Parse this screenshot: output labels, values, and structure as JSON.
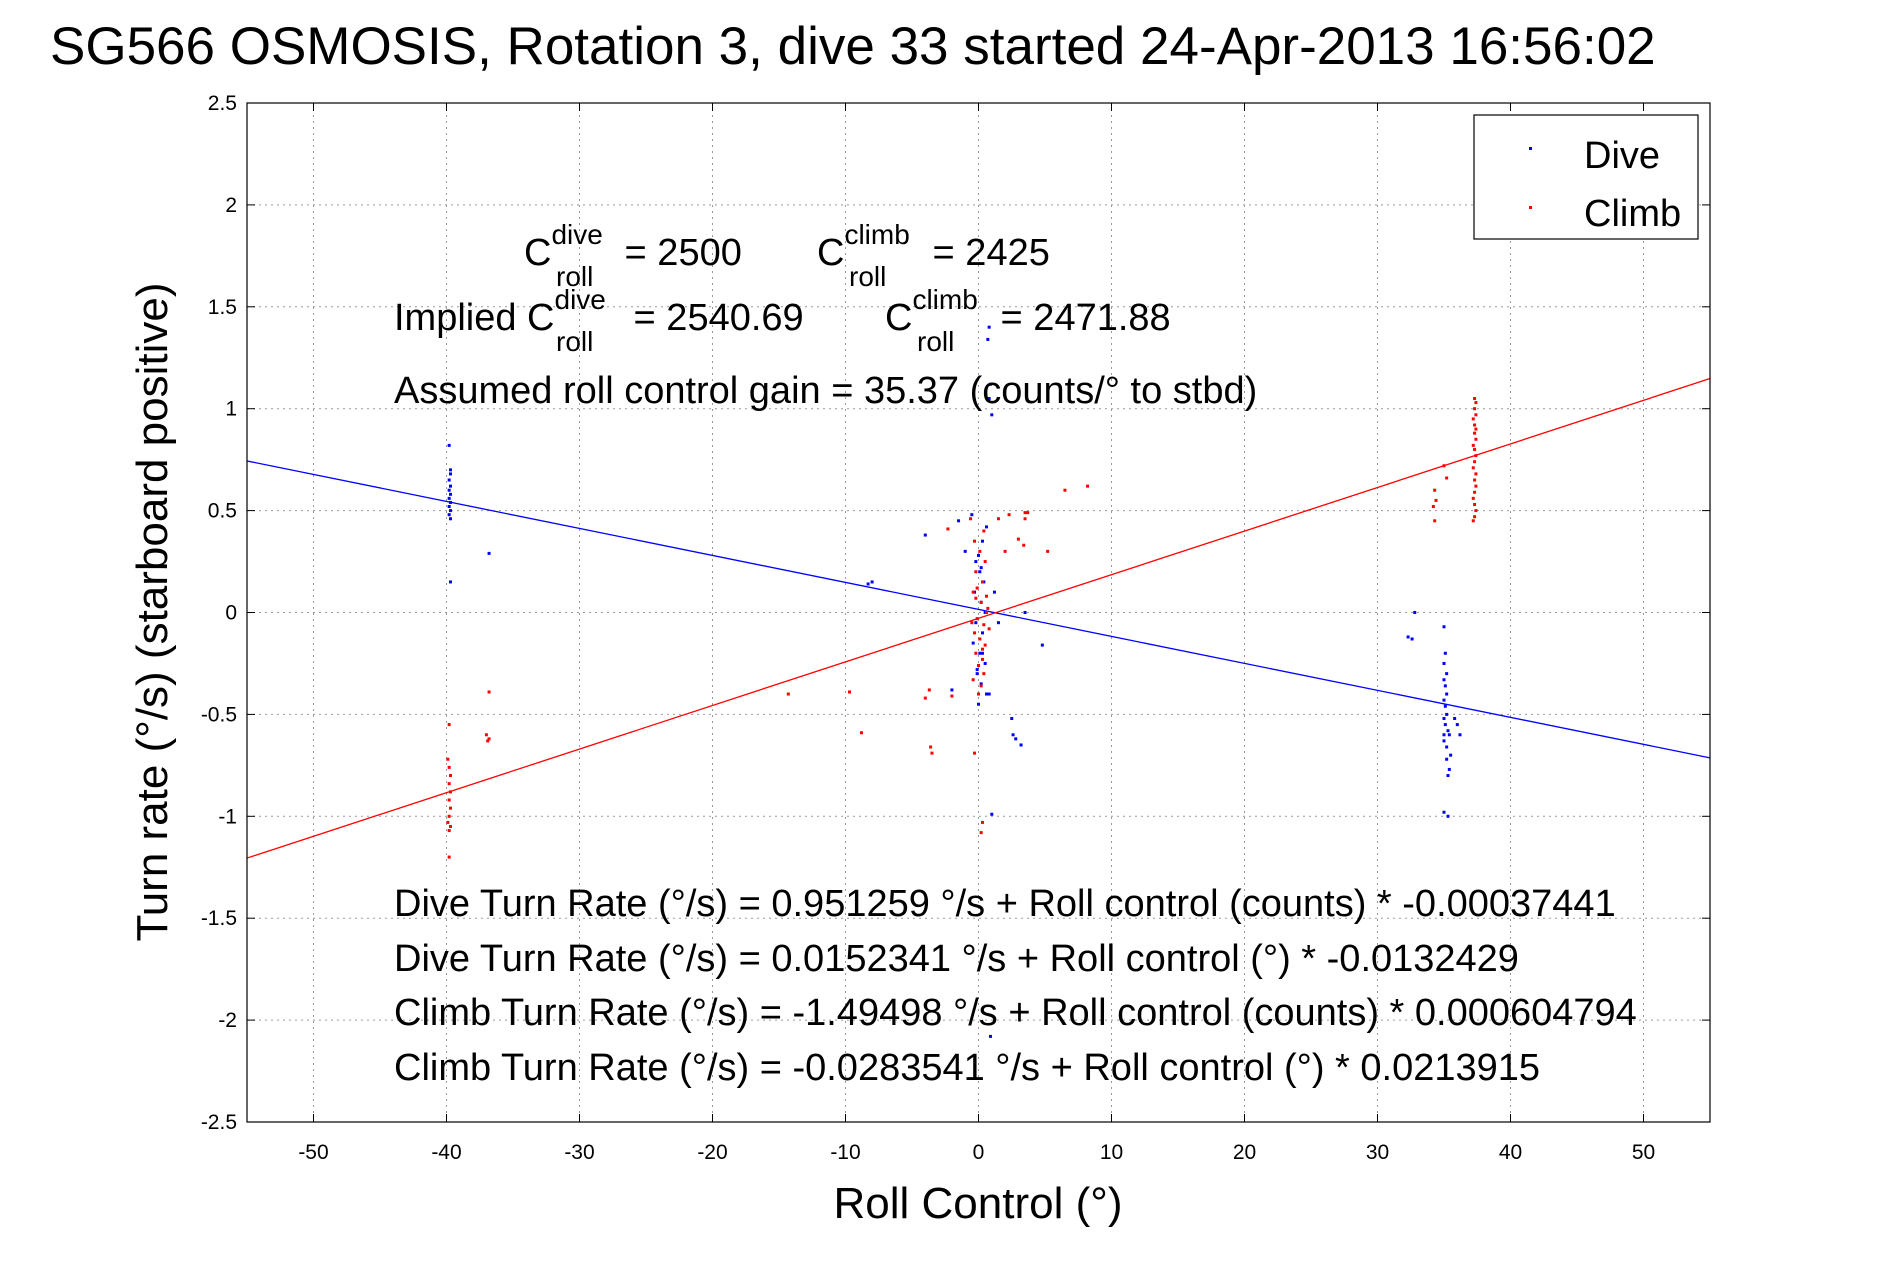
{
  "chart_data": {
    "type": "scatter",
    "title": "SG566 OSMOSIS, Rotation 3, dive 33 started 24-Apr-2013 16:56:02",
    "xlabel": "Roll Control (°)",
    "ylabel": "Turn rate (°/s)  (starboard positive)",
    "xlim": [
      -55,
      55
    ],
    "ylim": [
      -2.5,
      2.5
    ],
    "xticks": [
      -50,
      -40,
      -30,
      -20,
      -10,
      0,
      10,
      20,
      30,
      40,
      50
    ],
    "yticks": [
      -2.5,
      -2,
      -1.5,
      -1,
      -0.5,
      0,
      0.5,
      1,
      1.5,
      2,
      2.5
    ],
    "grid": true,
    "legend_position": "top-right",
    "legend": [
      "Dive",
      "Climb"
    ],
    "colors": {
      "dive": "#0000ff",
      "climb": "#ff0000"
    },
    "fit_lines": [
      {
        "series": "Dive",
        "intercept": 0.0152341,
        "slope": -0.0132429
      },
      {
        "series": "Climb",
        "intercept": -0.0283541,
        "slope": 0.0213915
      }
    ],
    "series": [
      {
        "name": "Dive",
        "points": [
          [
            -39.8,
            0.82
          ],
          [
            -39.7,
            0.7
          ],
          [
            -39.7,
            0.68
          ],
          [
            -39.8,
            0.65
          ],
          [
            -39.7,
            0.62
          ],
          [
            -39.8,
            0.6
          ],
          [
            -39.7,
            0.58
          ],
          [
            -39.8,
            0.56
          ],
          [
            -39.7,
            0.54
          ],
          [
            -39.8,
            0.52
          ],
          [
            -39.7,
            0.5
          ],
          [
            -39.8,
            0.48
          ],
          [
            -39.7,
            0.46
          ],
          [
            -39.7,
            0.15
          ],
          [
            -36.8,
            0.29
          ],
          [
            -8.3,
            0.14
          ],
          [
            -8.0,
            0.15
          ],
          [
            -4.0,
            0.38
          ],
          [
            -1.5,
            0.45
          ],
          [
            -1.0,
            0.3
          ],
          [
            -2.0,
            -0.38
          ],
          [
            -0.5,
            0.48
          ],
          [
            0.6,
            0.42
          ],
          [
            0.3,
            0.35
          ],
          [
            -0.2,
            0.25
          ],
          [
            0.1,
            0.2
          ],
          [
            0.4,
            0.15
          ],
          [
            -0.3,
            0.1
          ],
          [
            0.2,
            0.05
          ],
          [
            0.5,
            0.0
          ],
          [
            -0.2,
            -0.05
          ],
          [
            0.3,
            -0.1
          ],
          [
            -0.4,
            -0.15
          ],
          [
            0.1,
            -0.2
          ],
          [
            0.5,
            -0.25
          ],
          [
            -0.1,
            -0.3
          ],
          [
            0.2,
            -0.35
          ],
          [
            0.6,
            -0.4
          ],
          [
            0.0,
            -0.45
          ],
          [
            0.3,
            -0.2
          ],
          [
            0.0,
            0.28
          ],
          [
            0.2,
            0.22
          ],
          [
            -0.1,
            -0.28
          ],
          [
            0.8,
            1.4
          ],
          [
            0.7,
            1.34
          ],
          [
            0.9,
            1.12
          ],
          [
            0.8,
            1.05
          ],
          [
            1.0,
            0.97
          ],
          [
            0.8,
            -0.4
          ],
          [
            1.0,
            -0.99
          ],
          [
            0.9,
            -2.08
          ],
          [
            2.5,
            -0.52
          ],
          [
            2.6,
            -0.6
          ],
          [
            2.8,
            -0.62
          ],
          [
            3.2,
            -0.65
          ],
          [
            3.5,
            0.0
          ],
          [
            4.8,
            -0.16
          ],
          [
            1.2,
            0.1
          ],
          [
            1.5,
            -0.05
          ],
          [
            32.3,
            -0.12
          ],
          [
            32.6,
            -0.13
          ],
          [
            32.8,
            0.0
          ],
          [
            35.0,
            -0.07
          ],
          [
            35.1,
            -0.2
          ],
          [
            35.0,
            -0.25
          ],
          [
            35.2,
            -0.3
          ],
          [
            35.0,
            -0.33
          ],
          [
            35.1,
            -0.36
          ],
          [
            35.2,
            -0.4
          ],
          [
            35.0,
            -0.43
          ],
          [
            35.1,
            -0.46
          ],
          [
            35.2,
            -0.5
          ],
          [
            35.0,
            -0.52
          ],
          [
            35.1,
            -0.55
          ],
          [
            35.3,
            -0.58
          ],
          [
            35.4,
            -0.6
          ],
          [
            35.0,
            -0.63
          ],
          [
            35.2,
            -0.66
          ],
          [
            35.5,
            -0.7
          ],
          [
            35.2,
            -0.72
          ],
          [
            35.4,
            -0.77
          ],
          [
            35.3,
            -0.8
          ],
          [
            35.8,
            -0.52
          ],
          [
            36.0,
            -0.55
          ],
          [
            36.2,
            -0.6
          ],
          [
            35.0,
            -0.98
          ],
          [
            35.3,
            -1.0
          ],
          [
            35.0,
            -0.6
          ]
        ]
      },
      {
        "name": "Climb",
        "points": [
          [
            -39.8,
            -0.55
          ],
          [
            -39.9,
            -0.72
          ],
          [
            -39.8,
            -0.76
          ],
          [
            -39.7,
            -0.8
          ],
          [
            -39.8,
            -0.84
          ],
          [
            -39.7,
            -0.88
          ],
          [
            -39.8,
            -0.92
          ],
          [
            -39.7,
            -0.96
          ],
          [
            -39.8,
            -1.0
          ],
          [
            -39.9,
            -1.03
          ],
          [
            -39.7,
            -1.05
          ],
          [
            -39.8,
            -1.07
          ],
          [
            -39.8,
            -1.2
          ],
          [
            -36.8,
            -0.39
          ],
          [
            -37.0,
            -0.6
          ],
          [
            -36.8,
            -0.62
          ],
          [
            -36.9,
            -0.63
          ],
          [
            -14.3,
            -0.4
          ],
          [
            -9.7,
            -0.39
          ],
          [
            -8.8,
            -0.59
          ],
          [
            -3.7,
            -0.38
          ],
          [
            -4.0,
            -0.42
          ],
          [
            -3.6,
            -0.66
          ],
          [
            -3.5,
            -0.69
          ],
          [
            -0.3,
            -0.69
          ],
          [
            -2.0,
            -0.41
          ],
          [
            -2.3,
            0.41
          ],
          [
            0.3,
            -1.03
          ],
          [
            0.2,
            -1.08
          ],
          [
            -0.6,
            0.46
          ],
          [
            0.4,
            0.4
          ],
          [
            -0.3,
            0.35
          ],
          [
            0.1,
            0.3
          ],
          [
            0.5,
            0.25
          ],
          [
            -0.2,
            0.2
          ],
          [
            0.3,
            0.15
          ],
          [
            -0.4,
            0.1
          ],
          [
            0.2,
            0.05
          ],
          [
            0.6,
            0.0
          ],
          [
            -0.1,
            -0.03
          ],
          [
            0.4,
            -0.06
          ],
          [
            -0.3,
            -0.1
          ],
          [
            0.1,
            -0.13
          ],
          [
            0.5,
            -0.16
          ],
          [
            -0.2,
            -0.2
          ],
          [
            0.3,
            -0.23
          ],
          [
            0.0,
            -0.26
          ],
          [
            0.4,
            -0.3
          ],
          [
            -0.4,
            -0.33
          ],
          [
            0.2,
            -0.36
          ],
          [
            0.0,
            -0.4
          ],
          [
            -0.2,
            0.07
          ],
          [
            0.7,
            0.02
          ],
          [
            0.8,
            -0.08
          ],
          [
            -0.5,
            -0.05
          ],
          [
            0.3,
            -0.18
          ],
          [
            -0.1,
            0.12
          ],
          [
            0.6,
            0.08
          ],
          [
            1.5,
            0.46
          ],
          [
            2.0,
            0.3
          ],
          [
            2.3,
            0.48
          ],
          [
            3.0,
            0.36
          ],
          [
            3.4,
            0.33
          ],
          [
            3.5,
            0.46
          ],
          [
            3.7,
            0.49
          ],
          [
            3.5,
            0.49
          ],
          [
            5.2,
            0.3
          ],
          [
            6.5,
            0.6
          ],
          [
            8.2,
            0.62
          ],
          [
            34.3,
            0.6
          ],
          [
            34.4,
            0.55
          ],
          [
            34.2,
            0.52
          ],
          [
            34.3,
            0.45
          ],
          [
            35.0,
            0.72
          ],
          [
            35.2,
            0.66
          ],
          [
            37.3,
            1.05
          ],
          [
            37.4,
            1.03
          ],
          [
            37.3,
            1.0
          ],
          [
            37.4,
            0.97
          ],
          [
            37.2,
            0.95
          ],
          [
            37.3,
            0.92
          ],
          [
            37.4,
            0.9
          ],
          [
            37.3,
            0.88
          ],
          [
            37.4,
            0.85
          ],
          [
            37.2,
            0.82
          ],
          [
            37.3,
            0.8
          ],
          [
            37.4,
            0.77
          ],
          [
            37.3,
            0.74
          ],
          [
            37.2,
            0.71
          ],
          [
            37.4,
            0.68
          ],
          [
            37.3,
            0.65
          ],
          [
            37.4,
            0.62
          ],
          [
            37.3,
            0.59
          ],
          [
            37.2,
            0.56
          ],
          [
            37.3,
            0.53
          ],
          [
            37.4,
            0.5
          ],
          [
            37.3,
            0.47
          ],
          [
            37.2,
            0.45
          ]
        ]
      }
    ],
    "annotations": {
      "cdive_base": "C",
      "cdive_sup": "dive",
      "cdive_sub": "roll",
      "cdive_val": " = 2500",
      "cclimb_base": "C",
      "cclimb_sup": "climb",
      "cclimb_sub": "roll",
      "cclimb_val": " = 2425",
      "implied_prefix": "Implied C",
      "implied_dive_sup": "dive",
      "implied_dive_sub": "roll",
      "implied_dive_val": " = 2540.69",
      "implied_climb_base": "C",
      "implied_climb_sup": "climb",
      "implied_climb_sub": "roll",
      "implied_climb_val": " = 2471.88",
      "gain": "Assumed roll control gain = 35.37 (counts/° to stbd)",
      "eq1": "Dive Turn Rate (°/s) = 0.951259 °/s + Roll control (counts) * -0.00037441",
      "eq2": "Dive Turn Rate (°/s) = 0.0152341 °/s + Roll control (°) * -0.0132429",
      "eq3": "Climb Turn Rate (°/s) = -1.49498 °/s + Roll control (counts) * 0.000604794",
      "eq4": "Climb Turn Rate (°/s) = -0.0283541 °/s + Roll control (°) * 0.0213915"
    }
  }
}
